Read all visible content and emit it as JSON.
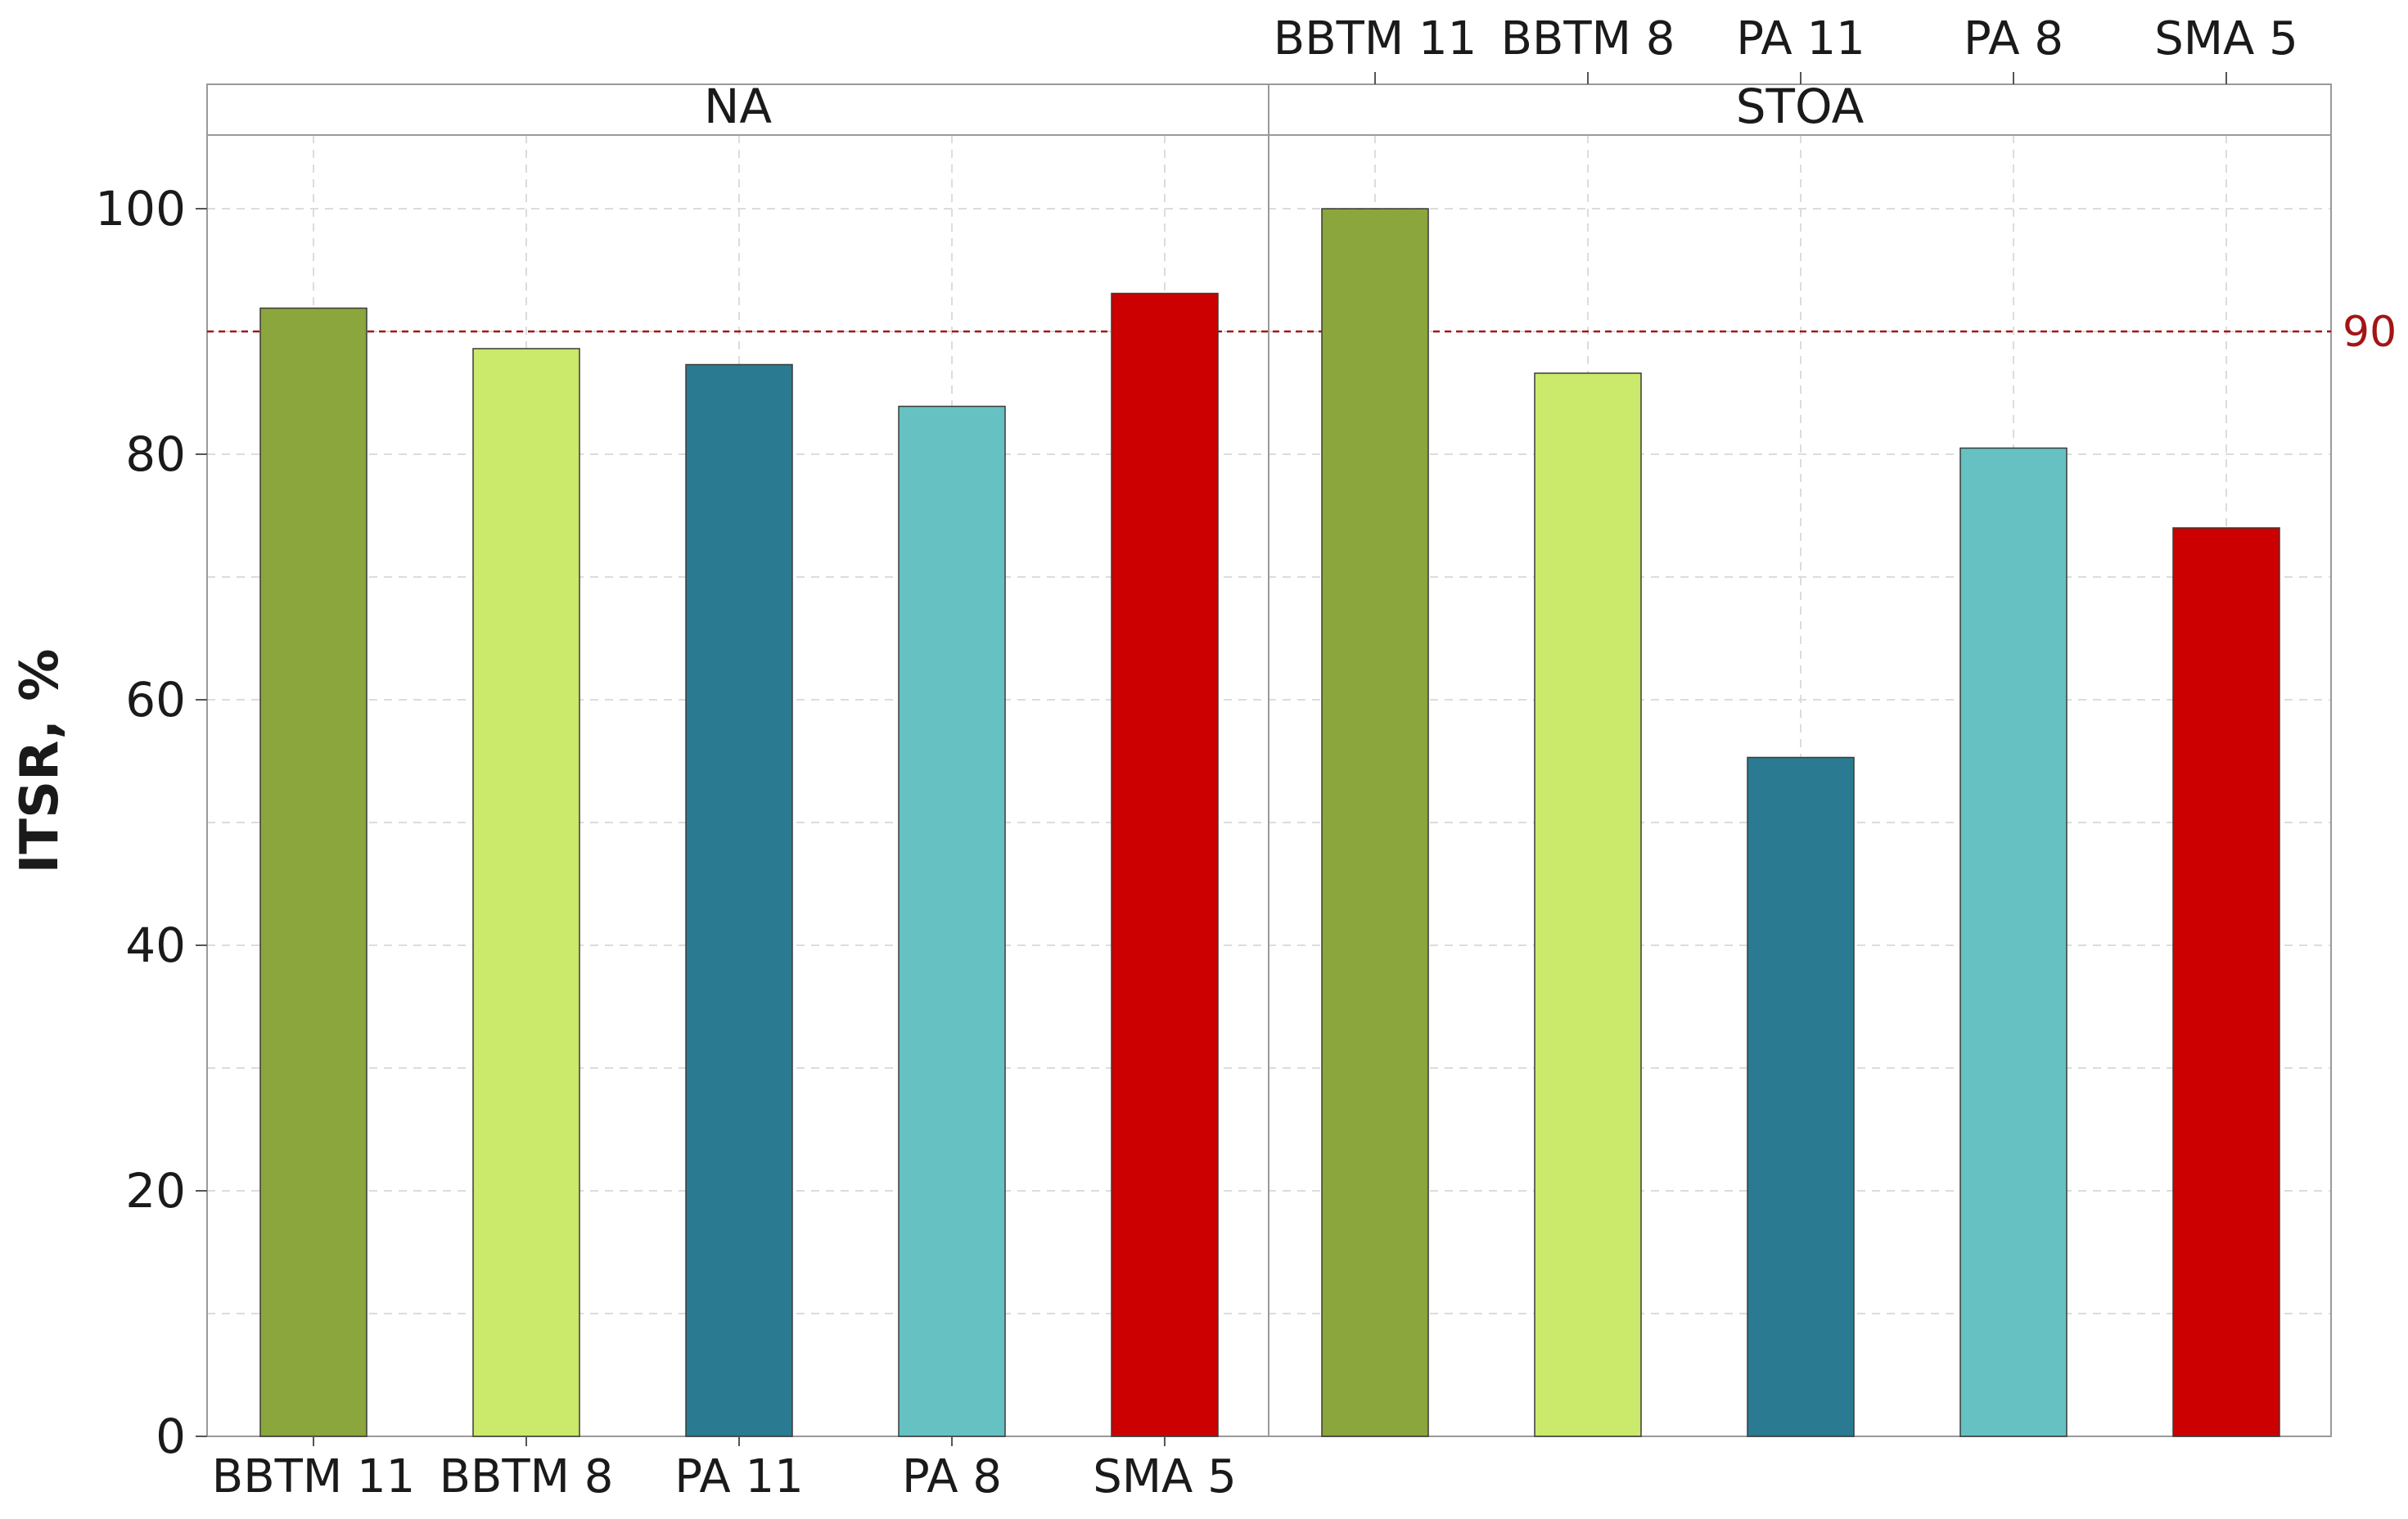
{
  "chart_data": {
    "type": "bar",
    "title": "",
    "ylabel": "ITSR, %",
    "xlabel": "",
    "ylim": [
      0,
      106
    ],
    "yticks": [
      0,
      20,
      40,
      60,
      80,
      100
    ],
    "ytick_labels": [
      "0",
      "20",
      "40",
      "60",
      "80",
      "100"
    ],
    "grid": true,
    "categories": [
      "BBTM 11",
      "BBTM 8",
      "PA 11",
      "PA 8",
      "SMA 5"
    ],
    "category_colors": [
      "#8aa63c",
      "#cbe96b",
      "#2a7b91",
      "#66c1c2",
      "#cc0000"
    ],
    "panels": [
      {
        "name": "NA",
        "values": [
          91.9,
          88.6,
          87.3,
          83.9,
          93.1
        ]
      },
      {
        "name": "STOA",
        "values": [
          100.0,
          86.6,
          55.3,
          80.5,
          74.0
        ]
      }
    ],
    "reference_line": {
      "value": 90,
      "label": "90",
      "color": "#a31515"
    }
  }
}
